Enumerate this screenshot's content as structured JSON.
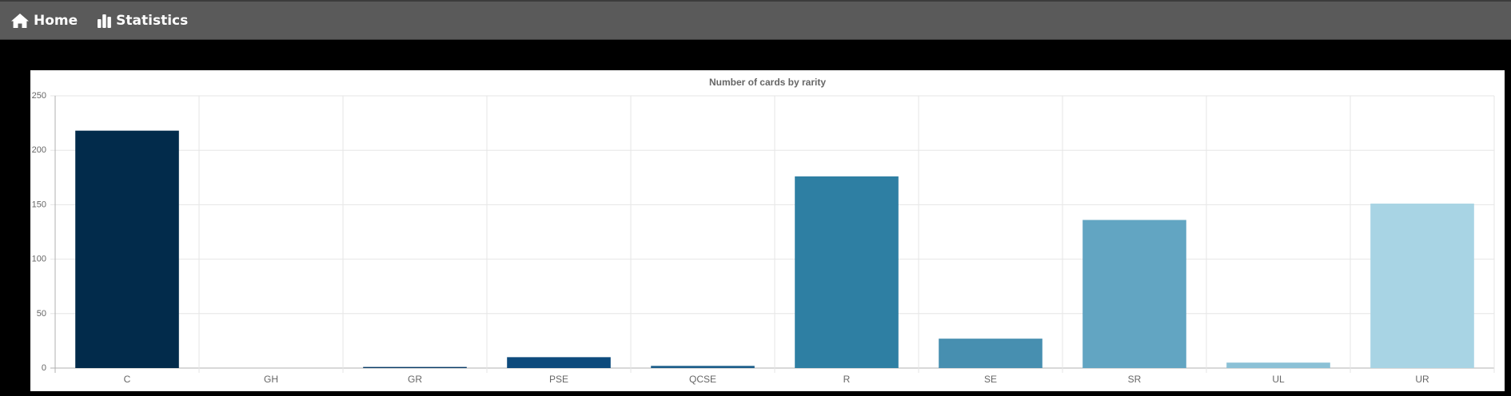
{
  "nav": {
    "items": [
      {
        "label": "Home",
        "icon": "home-icon"
      },
      {
        "label": "Statistics",
        "icon": "bar-chart-icon"
      }
    ]
  },
  "chart_data": {
    "type": "bar",
    "title": "Number of cards by rarity",
    "xlabel": "",
    "ylabel": "",
    "categories": [
      "C",
      "GH",
      "GR",
      "PSE",
      "QCSE",
      "R",
      "SE",
      "SR",
      "UL",
      "UR"
    ],
    "values": [
      218,
      0,
      1,
      10,
      2,
      176,
      27,
      136,
      5,
      151
    ],
    "colors": [
      "#022b4b",
      "#032e50",
      "#083a66",
      "#0d4a7c",
      "#1e5f8a",
      "#2e7fa3",
      "#478fb0",
      "#62a5c2",
      "#8cc1d6",
      "#a8d4e4"
    ],
    "ylim": [
      0,
      250
    ],
    "yticks": [
      0,
      50,
      100,
      150,
      200,
      250
    ],
    "grid": true,
    "legend": "none"
  }
}
